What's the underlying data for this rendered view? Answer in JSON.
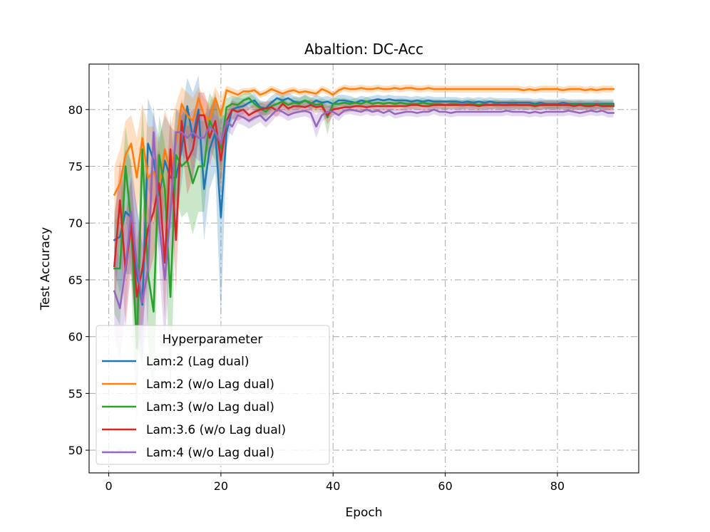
{
  "chart_data": {
    "type": "line",
    "title": "Abaltion: DC-Acc",
    "xlabel": "Epoch",
    "ylabel": "Test Accuracy",
    "xlim": [
      -3.5,
      94.5
    ],
    "ylim": [
      48,
      84
    ],
    "xticks": [
      0,
      20,
      40,
      60,
      80
    ],
    "yticks": [
      50,
      55,
      60,
      65,
      70,
      75,
      80
    ],
    "grid": true,
    "grid_style": "dash-dot",
    "legend": {
      "title": "Hyperparameter",
      "position": "lower-left"
    },
    "x_range": [
      1,
      90
    ],
    "series": [
      {
        "name": "Lam:2 (Lag dual)",
        "color": "#1f77b4",
        "values": [
          68.5,
          68.8,
          71.0,
          70.5,
          65.5,
          62.8,
          77.0,
          75.5,
          72.5,
          75.5,
          74.0,
          74.0,
          76.5,
          80.3,
          77.5,
          80.0,
          73.0,
          76.5,
          78.0,
          70.5,
          78.0,
          80.0,
          80.2,
          80.3,
          80.6,
          80.8,
          80.2,
          80.1,
          80.6,
          81.0,
          80.8,
          81.0,
          80.7,
          80.6,
          80.8,
          80.5,
          80.8,
          80.6,
          80.7,
          80.5,
          80.8,
          80.8,
          80.7,
          80.6,
          80.8,
          80.7,
          80.8,
          80.9,
          80.8,
          80.9,
          80.8,
          80.8,
          80.8,
          80.7,
          80.8,
          80.7,
          80.8,
          80.7,
          80.7,
          80.7,
          80.7,
          80.7,
          80.6,
          80.7,
          80.6,
          80.7,
          80.6,
          80.7,
          80.6,
          80.6,
          80.6,
          80.6,
          80.6,
          80.6,
          80.6,
          80.5,
          80.6,
          80.5,
          80.5,
          80.5,
          80.6,
          80.5,
          80.5,
          80.5,
          80.5,
          80.5,
          80.5,
          80.5,
          80.5,
          80.5
        ],
        "band": [
          2.5,
          5.0,
          5.5,
          5.0,
          6.0,
          5.5,
          4.0,
          4.0,
          5.0,
          4.0,
          4.5,
          4.0,
          3.0,
          2.5,
          4.0,
          3.0,
          4.5,
          3.5,
          3.5,
          9.0,
          1.5,
          1.0,
          0.8,
          0.7,
          0.6,
          0.6,
          0.6,
          0.6,
          0.6,
          0.5,
          0.5,
          0.5,
          0.5,
          0.5,
          0.5,
          0.5,
          0.5,
          0.5,
          0.5,
          0.5,
          0.5,
          0.5,
          0.5,
          0.4,
          0.4,
          0.4,
          0.4,
          0.4,
          0.4,
          0.4,
          0.4,
          0.4,
          0.4,
          0.4,
          0.4,
          0.4,
          0.4,
          0.4,
          0.4,
          0.4,
          0.4,
          0.4,
          0.4,
          0.4,
          0.4,
          0.4,
          0.4,
          0.4,
          0.4,
          0.4,
          0.4,
          0.4,
          0.4,
          0.4,
          0.4,
          0.4,
          0.4,
          0.4,
          0.4,
          0.4,
          0.4,
          0.4,
          0.4,
          0.4,
          0.4,
          0.4,
          0.4,
          0.4,
          0.4,
          0.4
        ]
      },
      {
        "name": "Lam:2 (w/o Lag dual)",
        "color": "#ff7f0e",
        "values": [
          72.5,
          73.5,
          76.0,
          77.0,
          74.0,
          77.5,
          74.0,
          74.5,
          73.0,
          76.5,
          74.5,
          77.0,
          80.5,
          79.5,
          79.0,
          81.0,
          79.5,
          79.0,
          81.0,
          79.5,
          81.7,
          81.5,
          81.3,
          81.6,
          81.6,
          81.7,
          81.3,
          81.5,
          81.8,
          81.6,
          81.4,
          81.6,
          81.7,
          81.5,
          81.6,
          81.5,
          81.4,
          81.8,
          81.6,
          81.3,
          81.7,
          81.9,
          81.8,
          81.8,
          81.9,
          81.8,
          81.8,
          81.9,
          81.8,
          81.8,
          81.9,
          81.8,
          81.9,
          81.9,
          81.8,
          81.8,
          81.9,
          81.8,
          81.8,
          81.8,
          81.8,
          81.8,
          81.8,
          81.8,
          81.8,
          81.8,
          81.8,
          81.8,
          81.8,
          81.8,
          81.8,
          81.8,
          81.8,
          81.7,
          81.8,
          81.7,
          81.8,
          81.8,
          81.8,
          81.8,
          81.7,
          81.8,
          81.8,
          81.8,
          81.7,
          81.8,
          81.7,
          81.8,
          81.8,
          81.8
        ],
        "band": [
          2.5,
          3.0,
          3.0,
          2.5,
          3.5,
          3.0,
          4.5,
          4.0,
          4.0,
          3.5,
          4.0,
          3.5,
          1.5,
          2.0,
          2.0,
          1.0,
          1.5,
          1.5,
          1.0,
          1.5,
          0.4,
          0.4,
          0.4,
          0.3,
          0.3,
          0.3,
          0.3,
          0.3,
          0.3,
          0.3,
          0.3,
          0.3,
          0.3,
          0.3,
          0.3,
          0.3,
          0.3,
          0.3,
          0.3,
          0.3,
          0.3,
          0.3,
          0.3,
          0.3,
          0.3,
          0.3,
          0.3,
          0.3,
          0.3,
          0.3,
          0.3,
          0.3,
          0.3,
          0.3,
          0.3,
          0.3,
          0.3,
          0.3,
          0.3,
          0.3,
          0.3,
          0.3,
          0.3,
          0.3,
          0.3,
          0.3,
          0.3,
          0.3,
          0.3,
          0.3,
          0.3,
          0.3,
          0.3,
          0.3,
          0.3,
          0.3,
          0.3,
          0.3,
          0.3,
          0.3,
          0.3,
          0.3,
          0.3,
          0.3,
          0.3,
          0.3,
          0.3,
          0.3,
          0.3,
          0.3
        ]
      },
      {
        "name": "Lam:3 (w/o Lag dual)",
        "color": "#2ca02c",
        "values": [
          66.0,
          66.0,
          75.0,
          70.0,
          59.0,
          76.5,
          65.5,
          62.2,
          76.0,
          73.0,
          63.5,
          76.0,
          75.0,
          75.5,
          73.5,
          75.0,
          75.0,
          79.0,
          78.0,
          76.5,
          80.2,
          80.5,
          80.4,
          80.8,
          81.0,
          80.5,
          80.1,
          79.8,
          80.3,
          80.5,
          80.7,
          80.4,
          80.6,
          80.5,
          80.8,
          80.6,
          80.4,
          80.5,
          79.3,
          80.5,
          80.5,
          80.6,
          80.5,
          80.6,
          80.5,
          80.7,
          80.5,
          80.6,
          80.5,
          80.6,
          80.5,
          80.6,
          80.5,
          80.5,
          80.5,
          80.6,
          80.5,
          80.5,
          80.5,
          80.4,
          80.5,
          80.5,
          80.4,
          80.5,
          80.5,
          80.4,
          80.5,
          80.4,
          80.5,
          80.4,
          80.4,
          80.5,
          80.4,
          80.4,
          80.4,
          80.4,
          80.4,
          80.4,
          80.4,
          80.4,
          80.4,
          80.4,
          80.4,
          80.4,
          80.4,
          80.4,
          80.4,
          80.4,
          80.4,
          80.4
        ],
        "band": [
          4.0,
          5.0,
          3.5,
          5.0,
          7.0,
          4.0,
          6.0,
          8.0,
          3.5,
          4.0,
          9.0,
          4.0,
          4.5,
          4.5,
          4.5,
          4.0,
          4.0,
          2.5,
          2.5,
          3.5,
          0.8,
          0.7,
          0.7,
          0.6,
          0.6,
          0.6,
          0.6,
          0.6,
          0.5,
          0.5,
          0.5,
          0.5,
          0.5,
          0.5,
          0.5,
          0.5,
          0.5,
          0.5,
          1.5,
          0.5,
          0.5,
          0.4,
          0.4,
          0.4,
          0.4,
          0.4,
          0.4,
          0.4,
          0.4,
          0.4,
          0.4,
          0.4,
          0.4,
          0.4,
          0.4,
          0.4,
          0.4,
          0.4,
          0.4,
          0.4,
          0.4,
          0.4,
          0.4,
          0.4,
          0.4,
          0.4,
          0.4,
          0.4,
          0.4,
          0.4,
          0.4,
          0.4,
          0.4,
          0.4,
          0.4,
          0.4,
          0.4,
          0.4,
          0.4,
          0.4,
          0.4,
          0.4,
          0.4,
          0.4,
          0.4,
          0.4,
          0.4,
          0.4,
          0.4,
          0.4
        ]
      },
      {
        "name": "Lam:3.6 (w/o Lag dual)",
        "color": "#d62728",
        "values": [
          66.2,
          72.0,
          65.8,
          70.0,
          63.5,
          66.0,
          69.5,
          71.0,
          73.5,
          66.5,
          76.5,
          68.5,
          79.0,
          75.5,
          76.5,
          79.5,
          79.5,
          77.5,
          79.0,
          75.5,
          79.0,
          80.0,
          79.8,
          80.0,
          79.5,
          79.8,
          80.0,
          80.1,
          80.2,
          79.9,
          80.5,
          80.1,
          80.3,
          80.3,
          80.2,
          80.4,
          80.2,
          80.3,
          79.5,
          80.0,
          80.1,
          80.2,
          80.2,
          80.3,
          80.3,
          80.2,
          80.3,
          80.3,
          80.3,
          80.3,
          80.3,
          80.3,
          80.3,
          80.4,
          80.4,
          80.3,
          80.3,
          80.4,
          80.4,
          80.4,
          80.4,
          80.4,
          80.4,
          80.4,
          80.4,
          80.3,
          80.4,
          80.4,
          80.4,
          80.4,
          80.4,
          80.4,
          80.4,
          80.4,
          80.4,
          80.3,
          80.4,
          80.4,
          80.4,
          80.4,
          80.4,
          80.4,
          80.3,
          80.4,
          80.3,
          80.3,
          80.4,
          80.3,
          80.3,
          80.3
        ],
        "band": [
          4.0,
          3.5,
          5.0,
          4.0,
          5.0,
          5.0,
          4.5,
          4.0,
          3.0,
          5.0,
          3.0,
          4.5,
          2.0,
          3.0,
          2.5,
          2.0,
          2.0,
          2.5,
          2.0,
          2.5,
          1.0,
          0.8,
          0.8,
          0.7,
          0.7,
          0.7,
          0.6,
          0.6,
          0.6,
          0.6,
          0.5,
          0.5,
          0.5,
          0.5,
          0.5,
          0.5,
          0.5,
          0.5,
          0.8,
          0.5,
          0.5,
          0.5,
          0.4,
          0.4,
          0.4,
          0.4,
          0.4,
          0.4,
          0.4,
          0.4,
          0.4,
          0.4,
          0.4,
          0.4,
          0.4,
          0.4,
          0.4,
          0.4,
          0.4,
          0.4,
          0.4,
          0.4,
          0.4,
          0.4,
          0.4,
          0.4,
          0.4,
          0.4,
          0.4,
          0.4,
          0.4,
          0.4,
          0.4,
          0.4,
          0.4,
          0.4,
          0.4,
          0.4,
          0.4,
          0.4,
          0.4,
          0.4,
          0.4,
          0.4,
          0.4,
          0.4,
          0.4,
          0.4,
          0.4,
          0.4
        ]
      },
      {
        "name": "Lam:4 (w/o Lag dual)",
        "color": "#9467bd",
        "values": [
          64.0,
          62.5,
          66.0,
          71.0,
          66.5,
          63.0,
          66.0,
          78.0,
          70.0,
          65.0,
          71.0,
          78.0,
          78.0,
          77.5,
          78.0,
          77.5,
          77.5,
          78.5,
          78.0,
          77.0,
          79.0,
          78.5,
          79.5,
          79.3,
          79.0,
          79.3,
          79.5,
          79.0,
          79.5,
          80.0,
          79.8,
          79.5,
          79.7,
          79.8,
          79.9,
          79.7,
          78.5,
          79.5,
          79.8,
          79.8,
          79.5,
          79.9,
          80.0,
          79.9,
          79.8,
          80.0,
          79.8,
          79.9,
          79.7,
          79.9,
          79.6,
          79.7,
          79.8,
          79.8,
          79.7,
          79.8,
          79.8,
          80.0,
          79.8,
          79.8,
          79.7,
          79.8,
          79.8,
          79.8,
          79.8,
          79.8,
          79.8,
          79.8,
          79.8,
          79.8,
          79.9,
          79.8,
          79.8,
          79.8,
          79.7,
          79.8,
          79.7,
          79.8,
          79.8,
          79.8,
          79.8,
          79.9,
          79.8,
          79.7,
          79.8,
          79.9,
          79.8,
          79.9,
          79.7,
          79.7
        ],
        "band": [
          4.0,
          4.5,
          4.0,
          3.5,
          5.0,
          5.0,
          4.5,
          2.5,
          4.0,
          5.5,
          4.0,
          2.0,
          2.0,
          2.0,
          2.0,
          2.0,
          2.0,
          1.5,
          1.5,
          2.0,
          0.8,
          0.8,
          0.7,
          0.7,
          0.7,
          0.7,
          0.6,
          0.6,
          0.6,
          0.5,
          0.5,
          0.5,
          0.5,
          0.5,
          0.5,
          0.5,
          1.0,
          0.6,
          0.5,
          0.5,
          0.5,
          0.4,
          0.4,
          0.4,
          0.4,
          0.4,
          0.4,
          0.4,
          0.4,
          0.4,
          0.4,
          0.4,
          0.4,
          0.4,
          0.4,
          0.4,
          0.4,
          0.4,
          0.4,
          0.4,
          0.4,
          0.4,
          0.4,
          0.4,
          0.4,
          0.4,
          0.4,
          0.4,
          0.4,
          0.4,
          0.4,
          0.4,
          0.4,
          0.4,
          0.4,
          0.4,
          0.4,
          0.4,
          0.4,
          0.4,
          0.4,
          0.4,
          0.4,
          0.4,
          0.4,
          0.4,
          0.4,
          0.4,
          0.4,
          0.4
        ]
      }
    ]
  }
}
